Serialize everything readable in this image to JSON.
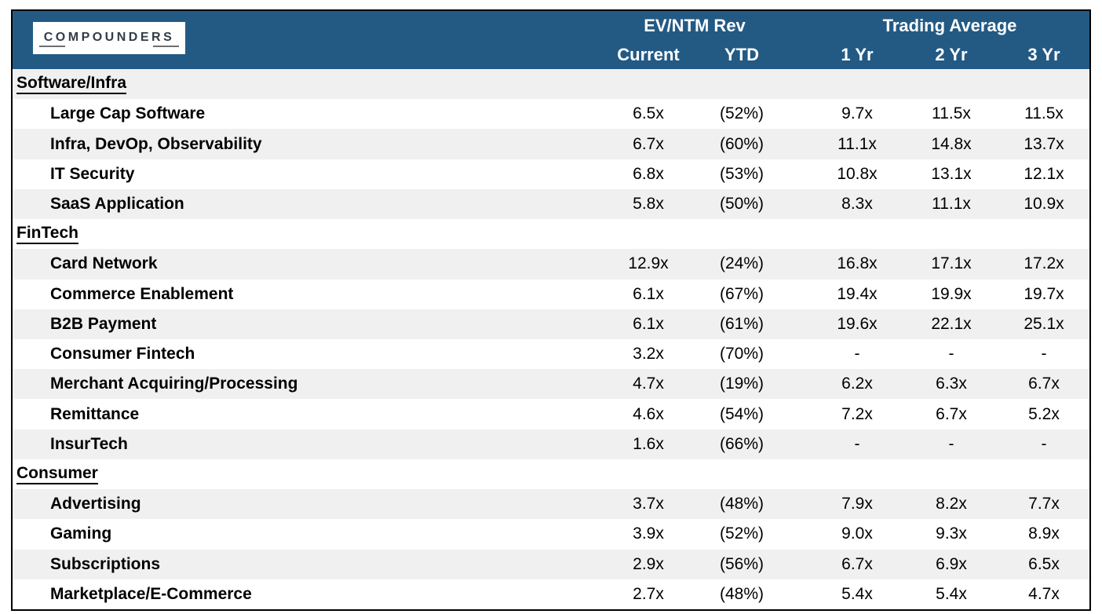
{
  "logo": {
    "text": "COMPOUNDERS"
  },
  "colors": {
    "header_bg": "#235A84",
    "header_text": "#FFFFFF",
    "row_alt": "#F0F0F0",
    "border": "#000000"
  },
  "chart_data": {
    "type": "table",
    "columns": [
      "Current",
      "YTD",
      "1 Yr",
      "2 Yr",
      "3 Yr"
    ],
    "column_groups": [
      {
        "label": "EV/NTM Rev",
        "columns": [
          "Current",
          "YTD"
        ]
      },
      {
        "label": "Trading Average",
        "columns": [
          "1 Yr",
          "2 Yr",
          "3 Yr"
        ]
      }
    ],
    "sections": [
      {
        "name": "Software/Infra",
        "rows": [
          {
            "label": "Large Cap Software",
            "values": [
              "6.5x",
              "(52%)",
              "9.7x",
              "11.5x",
              "11.5x"
            ]
          },
          {
            "label": "Infra, DevOp, Observability",
            "values": [
              "6.7x",
              "(60%)",
              "11.1x",
              "14.8x",
              "13.7x"
            ]
          },
          {
            "label": "IT Security",
            "values": [
              "6.8x",
              "(53%)",
              "10.8x",
              "13.1x",
              "12.1x"
            ]
          },
          {
            "label": "SaaS Application",
            "values": [
              "5.8x",
              "(50%)",
              "8.3x",
              "11.1x",
              "10.9x"
            ]
          }
        ]
      },
      {
        "name": "FinTech",
        "rows": [
          {
            "label": "Card Network",
            "values": [
              "12.9x",
              "(24%)",
              "16.8x",
              "17.1x",
              "17.2x"
            ]
          },
          {
            "label": "Commerce Enablement",
            "values": [
              "6.1x",
              "(67%)",
              "19.4x",
              "19.9x",
              "19.7x"
            ]
          },
          {
            "label": "B2B Payment",
            "values": [
              "6.1x",
              "(61%)",
              "19.6x",
              "22.1x",
              "25.1x"
            ]
          },
          {
            "label": "Consumer Fintech",
            "values": [
              "3.2x",
              "(70%)",
              "-",
              "-",
              "-"
            ]
          },
          {
            "label": "Merchant Acquiring/Processing",
            "values": [
              "4.7x",
              "(19%)",
              "6.2x",
              "6.3x",
              "6.7x"
            ]
          },
          {
            "label": "Remittance",
            "values": [
              "4.6x",
              "(54%)",
              "7.2x",
              "6.7x",
              "5.2x"
            ]
          },
          {
            "label": "InsurTech",
            "values": [
              "1.6x",
              "(66%)",
              "-",
              "-",
              "-"
            ]
          }
        ]
      },
      {
        "name": "Consumer",
        "rows": [
          {
            "label": "Advertising",
            "values": [
              "3.7x",
              "(48%)",
              "7.9x",
              "8.2x",
              "7.7x"
            ]
          },
          {
            "label": "Gaming",
            "values": [
              "3.9x",
              "(52%)",
              "9.0x",
              "9.3x",
              "8.9x"
            ]
          },
          {
            "label": "Subscriptions",
            "values": [
              "2.9x",
              "(56%)",
              "6.7x",
              "6.9x",
              "6.5x"
            ]
          },
          {
            "label": "Marketplace/E-Commerce",
            "values": [
              "2.7x",
              "(48%)",
              "5.4x",
              "5.4x",
              "4.7x"
            ]
          }
        ]
      }
    ]
  }
}
